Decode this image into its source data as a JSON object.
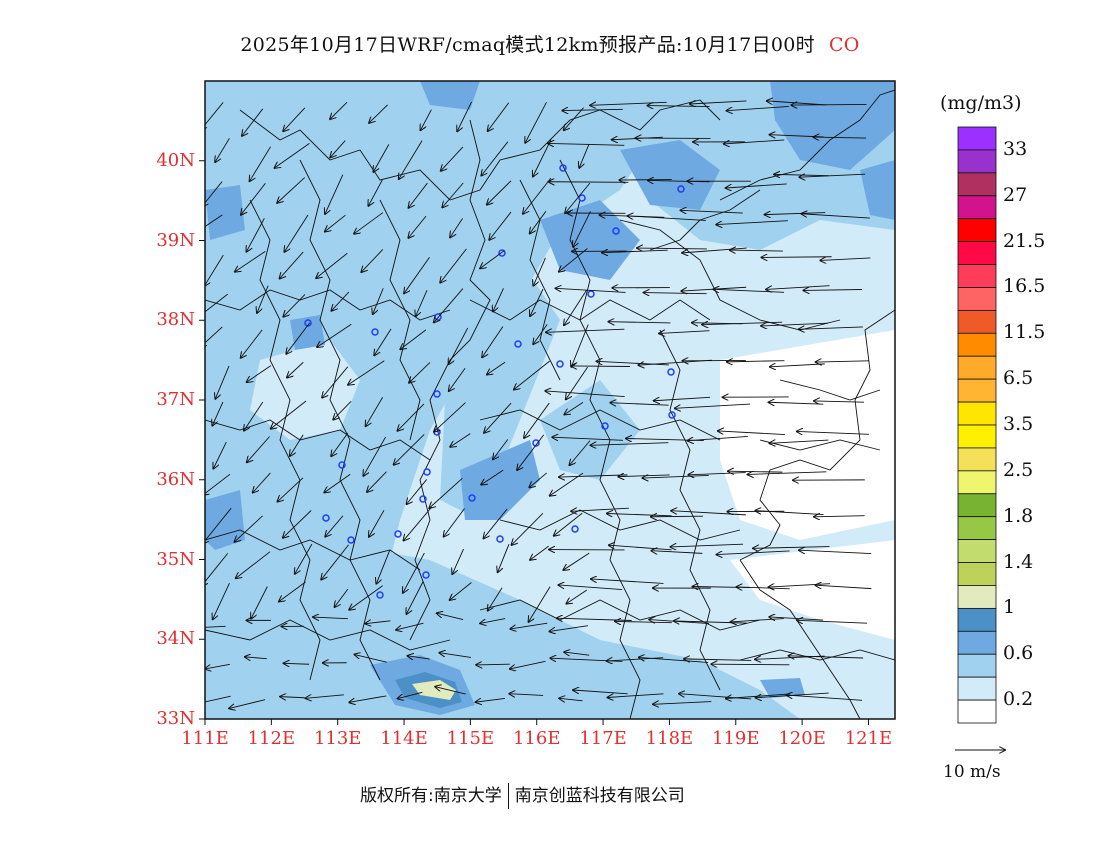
{
  "title": {
    "text": "2025年10月17日WRF/cmaq模式12km预报产品:10月17日00时",
    "species": "CO"
  },
  "map": {
    "lat_labels": [
      "40N",
      "39N",
      "38N",
      "37N",
      "36N",
      "35N",
      "34N",
      "33N"
    ],
    "lat_values": [
      40,
      39,
      38,
      37,
      36,
      35,
      34,
      33
    ],
    "lon_labels": [
      "111E",
      "112E",
      "113E",
      "114E",
      "115E",
      "116E",
      "117E",
      "118E",
      "119E",
      "120E",
      "121E"
    ],
    "lon_values": [
      111,
      112,
      113,
      114,
      115,
      116,
      117,
      118,
      119,
      120,
      121
    ],
    "lat_range": [
      33,
      41
    ],
    "lon_range": [
      111,
      121.4
    ],
    "prevailing_wind": "easterly / northeasterly"
  },
  "colorbar": {
    "units": "(mg/m3)",
    "levels": [
      "33",
      "27",
      "21.5",
      "16.5",
      "11.5",
      "6.5",
      "3.5",
      "2.5",
      "1.8",
      "1.4",
      "1",
      "0.6",
      "0.2"
    ],
    "colors_top_to_bottom": [
      "#9b30ff",
      "#9932cc",
      "#b03060",
      "#d2148c",
      "#ff0000",
      "#ff0a46",
      "#ff3c5a",
      "#ff6464",
      "#f05a28",
      "#ff8c00",
      "#ffaa28",
      "#ffb432",
      "#ffe600",
      "#fff000",
      "#f5e05a",
      "#f0f56e",
      "#78b432",
      "#96c846",
      "#c3dc6e",
      "#bed25a",
      "#e1ebbe",
      "#4b91c8",
      "#6eaae1",
      "#a0d2f0",
      "#d2ebf8",
      "#ffffff"
    ]
  },
  "wind_reference": {
    "label": "10 m/s"
  },
  "footer": {
    "left": "版权所有:南京大学",
    "right": "南京创蓝科技有限公司"
  }
}
